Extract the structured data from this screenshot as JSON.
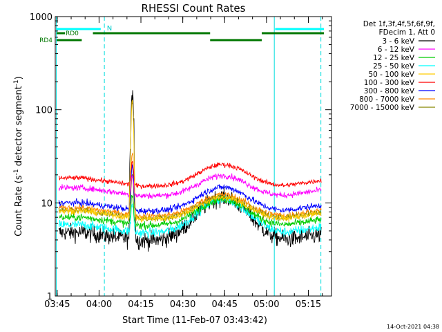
{
  "chart_data": {
    "type": "line",
    "title": "RHESSI Count Rates",
    "xlabel": "Start Time (11-Feb-07 03:43:42)",
    "ylabel_main": "Count Rate (s",
    "ylabel_sup1": "-1",
    "ylabel_mid": " detector segment",
    "ylabel_sup2": "-1",
    "ylabel_end": ")",
    "x_ticks": [
      "03:45",
      "04:00",
      "04:15",
      "04:30",
      "04:45",
      "05:00",
      "05:15"
    ],
    "x_tick_minutes": [
      -1.3,
      13.7,
      28.7,
      43.7,
      58.7,
      73.7,
      88.7
    ],
    "x_range_minutes": [
      -2,
      97
    ],
    "y_scale": "log",
    "ylim": [
      1,
      1000
    ],
    "y_tick_labels": [
      "1",
      "10",
      "100",
      "1000"
    ],
    "y_tick_values": [
      1,
      10,
      100,
      1000
    ],
    "legend_header": [
      "Det 1f,3f,4f,5f,6f,9f,",
      "FDecim 1, Att 0"
    ],
    "timestamp": "14-Oct-2021 04:38",
    "markers": {
      "n_label": "N",
      "rd0_label": "RD0",
      "rd4_label": "RD4"
    },
    "vertical_lines": {
      "solid_minutes": [
        -1.6,
        76.5
      ],
      "dashed_minutes": [
        15.6,
        93.2
      ]
    },
    "series": [
      {
        "name": "3 - 6 keV",
        "color": "#000000",
        "base": 4.8,
        "peak": 180
      },
      {
        "name": "6 - 12 keV",
        "color": "#ff00ff",
        "base": 14.5,
        "peak": 20
      },
      {
        "name": "12 - 25 keV",
        "color": "#00cc00",
        "base": 7.0,
        "peak": 12
      },
      {
        "name": "25 - 50 keV",
        "color": "#00ffff",
        "base": 5.8,
        "peak": 10
      },
      {
        "name": "50 - 100 keV",
        "color": "#ffcc00",
        "base": 8.2,
        "peak": 120
      },
      {
        "name": "100 - 300 keV",
        "color": "#ff0000",
        "base": 18.5,
        "peak": 28
      },
      {
        "name": "300 - 800 keV",
        "color": "#0000ff",
        "base": 10.0,
        "peak": 25
      },
      {
        "name": "800 - 7000 keV",
        "color": "#ff8800",
        "base": 8.8,
        "peak": 35
      },
      {
        "name": "7000 - 15000 keV",
        "color": "#888800",
        "base": 8.3,
        "peak": 20
      }
    ]
  }
}
